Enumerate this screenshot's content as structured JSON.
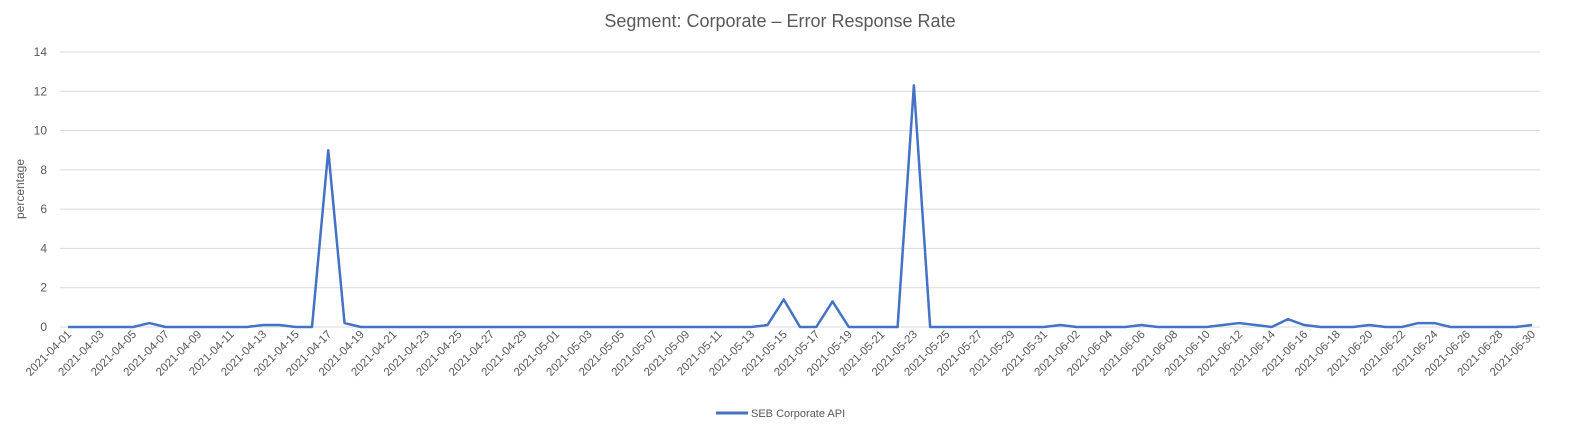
{
  "chart_data": {
    "type": "line",
    "title": "Segment: Corporate – Error Response Rate",
    "xlabel": "",
    "ylabel": "percentage",
    "ylim": [
      0,
      14
    ],
    "yticks": [
      0,
      2,
      4,
      6,
      8,
      10,
      12,
      14
    ],
    "grid": true,
    "legend_position": "bottom",
    "x": [
      "2021-04-01",
      "2021-04-02",
      "2021-04-03",
      "2021-04-04",
      "2021-04-05",
      "2021-04-06",
      "2021-04-07",
      "2021-04-08",
      "2021-04-09",
      "2021-04-10",
      "2021-04-11",
      "2021-04-12",
      "2021-04-13",
      "2021-04-14",
      "2021-04-15",
      "2021-04-16",
      "2021-04-17",
      "2021-04-18",
      "2021-04-19",
      "2021-04-20",
      "2021-04-21",
      "2021-04-22",
      "2021-04-23",
      "2021-04-24",
      "2021-04-25",
      "2021-04-26",
      "2021-04-27",
      "2021-04-28",
      "2021-04-29",
      "2021-04-30",
      "2021-05-01",
      "2021-05-02",
      "2021-05-03",
      "2021-05-04",
      "2021-05-05",
      "2021-05-06",
      "2021-05-07",
      "2021-05-08",
      "2021-05-09",
      "2021-05-10",
      "2021-05-11",
      "2021-05-12",
      "2021-05-13",
      "2021-05-14",
      "2021-05-15",
      "2021-05-16",
      "2021-05-17",
      "2021-05-18",
      "2021-05-19",
      "2021-05-20",
      "2021-05-21",
      "2021-05-22",
      "2021-05-23",
      "2021-05-24",
      "2021-05-25",
      "2021-05-26",
      "2021-05-27",
      "2021-05-28",
      "2021-05-29",
      "2021-05-30",
      "2021-05-31",
      "2021-06-01",
      "2021-06-02",
      "2021-06-03",
      "2021-06-04",
      "2021-06-05",
      "2021-06-06",
      "2021-06-07",
      "2021-06-08",
      "2021-06-09",
      "2021-06-10",
      "2021-06-11",
      "2021-06-12",
      "2021-06-13",
      "2021-06-14",
      "2021-06-15",
      "2021-06-16",
      "2021-06-17",
      "2021-06-18",
      "2021-06-19",
      "2021-06-20",
      "2021-06-21",
      "2021-06-22",
      "2021-06-23",
      "2021-06-24",
      "2021-06-25",
      "2021-06-26",
      "2021-06-27",
      "2021-06-28",
      "2021-06-29",
      "2021-06-30"
    ],
    "xtick_labels": [
      "2021-04-01",
      "2021-04-03",
      "2021-04-05",
      "2021-04-07",
      "2021-04-09",
      "2021-04-11",
      "2021-04-13",
      "2021-04-15",
      "2021-04-17",
      "2021-04-19",
      "2021-04-21",
      "2021-04-23",
      "2021-04-25",
      "2021-04-27",
      "2021-04-29",
      "2021-05-01",
      "2021-05-03",
      "2021-05-05",
      "2021-05-07",
      "2021-05-09",
      "2021-05-11",
      "2021-05-13",
      "2021-05-15",
      "2021-05-17",
      "2021-05-19",
      "2021-05-21",
      "2021-05-23",
      "2021-05-25",
      "2021-05-27",
      "2021-05-29",
      "2021-05-31",
      "2021-06-02",
      "2021-06-04",
      "2021-06-06",
      "2021-06-08",
      "2021-06-10",
      "2021-06-12",
      "2021-06-14",
      "2021-06-16",
      "2021-06-18",
      "2021-06-20",
      "2021-06-22",
      "2021-06-24",
      "2021-06-26",
      "2021-06-28",
      "2021-06-30"
    ],
    "series": [
      {
        "name": "SEB Corporate API",
        "color": "#4472c4",
        "values": [
          0,
          0,
          0,
          0,
          0,
          0.2,
          0,
          0,
          0,
          0,
          0,
          0,
          0.1,
          0.1,
          0,
          0,
          9.0,
          0.2,
          0,
          0,
          0,
          0,
          0,
          0,
          0,
          0,
          0,
          0,
          0,
          0,
          0,
          0,
          0,
          0,
          0,
          0,
          0,
          0,
          0,
          0,
          0,
          0,
          0,
          0.1,
          1.4,
          0,
          0,
          1.3,
          0,
          0,
          0,
          0,
          12.3,
          0,
          0,
          0,
          0,
          0,
          0,
          0,
          0,
          0.1,
          0,
          0,
          0,
          0,
          0.1,
          0,
          0,
          0,
          0,
          0.1,
          0.2,
          0.1,
          0,
          0.4,
          0.1,
          0,
          0,
          0,
          0.1,
          0,
          0,
          0.2,
          0.2,
          0,
          0,
          0,
          0,
          0,
          0.1
        ]
      }
    ]
  }
}
